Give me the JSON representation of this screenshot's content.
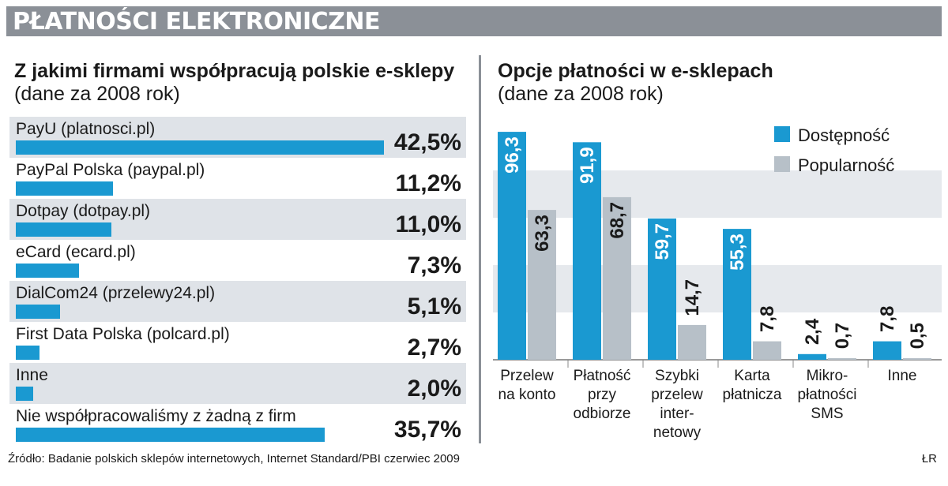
{
  "header": {
    "title": "PŁATNOŚCI ELEKTRONICZNE"
  },
  "left": {
    "title_bold": "Z jakimi firmami współpracują polskie e-sklepy",
    "title_normal": "(dane za 2008 rok)"
  },
  "right": {
    "title_bold": "Opcje płatności w e-sklepach",
    "title_normal": "(dane za 2008 rok)"
  },
  "chart_data": [
    {
      "type": "bar",
      "orientation": "horizontal",
      "title": "Z jakimi firmami współpracują polskie e-sklepy (dane za 2008 rok)",
      "categories": [
        "PayU (platnosci.pl)",
        "PayPal Polska (paypal.pl)",
        "Dotpay (dotpay.pl)",
        "eCard (ecard.pl)",
        "DialCom24 (przelewy24.pl)",
        "First Data Polska (polcard.pl)",
        "Inne",
        "Nie współpracowaliśmy z żadną z firm"
      ],
      "values": [
        42.5,
        11.2,
        11.0,
        7.3,
        5.1,
        2.7,
        2.0,
        35.7
      ],
      "value_labels": [
        "42,5%",
        "11,2%",
        "11,0%",
        "7,3%",
        "5,1%",
        "2,7%",
        "2,0%",
        "35,7%"
      ],
      "colors": {
        "bar": "#1a99d1",
        "stripe": "#dfe3e8"
      }
    },
    {
      "type": "bar",
      "title": "Opcje płatności w e-sklepach (dane za 2008 rok)",
      "categories": [
        "Przelew\nna konto",
        "Płatność\nprzy\nodbiorze",
        "Szybki\nprzelew\ninter-\nnetowy",
        "Karta\npłatnicza",
        "Mikro-\npłatności\nSMS",
        "Inne"
      ],
      "series": [
        {
          "name": "Dostępność",
          "values": [
            96.3,
            91.9,
            59.7,
            55.3,
            2.4,
            7.8
          ],
          "labels": [
            "96,3",
            "91,9",
            "59,7",
            "55,3",
            "2,4",
            "7,8"
          ],
          "color": "#1a99d1"
        },
        {
          "name": "Popularność",
          "values": [
            63.3,
            68.7,
            14.7,
            7.8,
            0.7,
            0.5
          ],
          "labels": [
            "63,3",
            "68,7",
            "14,7",
            "7,8",
            "0,7",
            "0,5"
          ],
          "color": "#b7c0c8"
        }
      ],
      "ylim": [
        0,
        100
      ],
      "grid": "horizontal bands",
      "legend": "top-right",
      "colors": {
        "band": "#e6e9ed"
      }
    }
  ],
  "footer": {
    "source": "Źródło: Badanie polskich sklepów internetowych, Internet Standard/PBI czerwiec 2009",
    "author": "ŁR"
  }
}
